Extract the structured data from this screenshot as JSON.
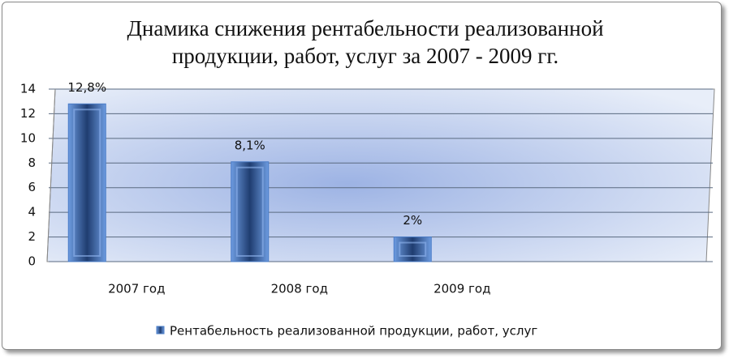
{
  "chart_data": {
    "type": "bar",
    "title": "Днамика снижения рентабельности реализованной продукции, работ, услуг за 2007 - 2009 гг.",
    "categories": [
      "2007 год",
      "2008 год",
      "2009 год",
      null
    ],
    "series": [
      {
        "name": "Рентабельность реализованной продукции, работ, услуг",
        "color": "#4a7cc7",
        "values": [
          12.8,
          8.1,
          2,
          null
        ],
        "value_labels": [
          "12,8%",
          "8,1%",
          "2%",
          null
        ]
      }
    ],
    "ylim": [
      0,
      14
    ],
    "yticks": [
      0,
      2,
      4,
      6,
      8,
      10,
      12,
      14
    ],
    "grid": true,
    "legend": "bottom"
  }
}
